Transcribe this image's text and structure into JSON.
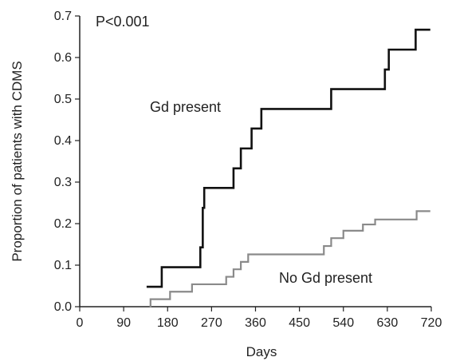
{
  "chart_data": {
    "type": "line",
    "title": "",
    "xlabel": "Days",
    "ylabel": "Proportion of patients with CDMS",
    "xlim": [
      0,
      720
    ],
    "ylim": [
      0,
      0.7
    ],
    "xticks": [
      0,
      90,
      180,
      270,
      360,
      450,
      540,
      630,
      720
    ],
    "yticks": [
      0.0,
      0.1,
      0.2,
      0.3,
      0.4,
      0.5,
      0.6,
      0.7
    ],
    "xtick_labels": [
      "0",
      "90",
      "180",
      "270",
      "360",
      "450",
      "540",
      "630",
      "720"
    ],
    "ytick_labels": [
      "0.0",
      "0.1",
      "0.2",
      "0.3",
      "0.4",
      "0.5",
      "0.6",
      "0.7"
    ],
    "grid": false,
    "step": true,
    "annotations": {
      "pvalue": "P<0.001",
      "gd_present_label": "Gd present",
      "no_gd_present_label": "No Gd present"
    },
    "series": [
      {
        "name": "Gd present",
        "color": "#111111",
        "x": [
          137,
          168,
          247,
          252,
          255,
          260,
          315,
          330,
          352,
          372,
          385,
          515,
          625,
          633,
          688,
          718
        ],
        "y": [
          0.048,
          0.095,
          0.143,
          0.238,
          0.286,
          0.286,
          0.333,
          0.381,
          0.429,
          0.476,
          0.476,
          0.524,
          0.571,
          0.619,
          0.667,
          0.667
        ]
      },
      {
        "name": "No Gd present",
        "color": "#8a8a8a",
        "x": [
          143,
          145,
          185,
          230,
          300,
          315,
          330,
          345,
          500,
          515,
          540,
          580,
          605,
          690,
          718
        ],
        "y": [
          0.0,
          0.018,
          0.036,
          0.054,
          0.072,
          0.09,
          0.108,
          0.126,
          0.146,
          0.165,
          0.183,
          0.198,
          0.21,
          0.23,
          0.23
        ]
      }
    ]
  }
}
